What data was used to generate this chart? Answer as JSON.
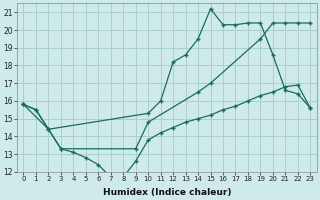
{
  "xlabel": "Humidex (Indice chaleur)",
  "bg_color": "#ceeaea",
  "grid_color": "#aacfcf",
  "line_color": "#1a6b5e",
  "xlim": [
    -0.5,
    23.5
  ],
  "ylim": [
    12,
    21.5
  ],
  "yticks": [
    12,
    13,
    14,
    15,
    16,
    17,
    18,
    19,
    20,
    21
  ],
  "xticks": [
    0,
    1,
    2,
    3,
    4,
    5,
    6,
    7,
    8,
    9,
    10,
    11,
    12,
    13,
    14,
    15,
    16,
    17,
    18,
    19,
    20,
    21,
    22,
    23
  ],
  "series": [
    {
      "x": [
        0,
        1,
        2,
        10,
        11,
        12,
        13,
        14,
        15,
        16,
        17,
        18,
        19,
        20,
        21,
        22,
        23
      ],
      "y": [
        15.8,
        15.5,
        14.4,
        15.3,
        16.0,
        18.2,
        18.6,
        19.5,
        21.2,
        20.3,
        20.3,
        20.4,
        20.4,
        18.6,
        16.6,
        16.4,
        15.6
      ]
    },
    {
      "x": [
        0,
        1,
        2,
        3,
        4,
        5,
        6,
        7,
        8,
        9,
        10,
        11,
        12,
        13,
        14,
        15,
        16,
        17,
        18,
        19,
        20,
        21,
        22,
        23
      ],
      "y": [
        15.8,
        15.5,
        14.4,
        13.3,
        13.1,
        12.8,
        12.4,
        11.7,
        11.7,
        12.6,
        13.8,
        14.2,
        14.5,
        14.8,
        15.0,
        15.2,
        15.5,
        15.7,
        16.0,
        16.3,
        16.5,
        16.8,
        16.9,
        15.6
      ]
    },
    {
      "x": [
        0,
        2,
        3,
        9,
        10,
        14,
        15,
        19,
        20,
        21,
        22,
        23
      ],
      "y": [
        15.8,
        14.4,
        13.3,
        13.3,
        14.8,
        16.5,
        17.0,
        19.5,
        20.4,
        20.4,
        20.4,
        20.4
      ]
    }
  ]
}
